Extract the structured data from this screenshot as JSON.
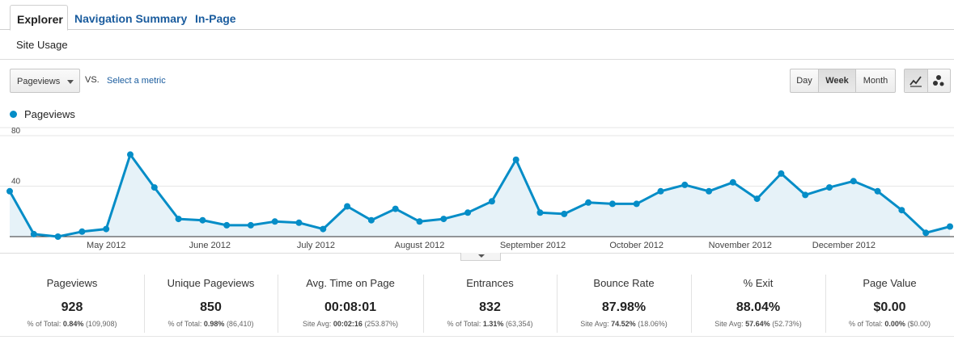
{
  "tabs": [
    {
      "label": "Explorer",
      "active": true
    },
    {
      "label": "Navigation Summary",
      "active": false
    },
    {
      "label": "In-Page",
      "active": false
    }
  ],
  "subheader": "Site Usage",
  "controls": {
    "metric_select": "Pageviews",
    "vs_label": "VS.",
    "select_metric_link": "Select a metric",
    "period_buttons": [
      "Day",
      "Week",
      "Month"
    ],
    "period_selected": "Week",
    "view_buttons": [
      "line-chart-icon",
      "motion-chart-icon"
    ]
  },
  "legend": {
    "label": "Pageviews",
    "color": "#058dc7"
  },
  "chart_data": {
    "type": "area",
    "series": [
      {
        "name": "Pageviews",
        "color": "#058dc7",
        "values": [
          36,
          2,
          0,
          4,
          6,
          65,
          39,
          14,
          13,
          9,
          9,
          12,
          11,
          6,
          24,
          13,
          22,
          12,
          14,
          19,
          28,
          61,
          19,
          18,
          27,
          26,
          26,
          36,
          41,
          36,
          43,
          30,
          50,
          33,
          39,
          44,
          36,
          21,
          3,
          8
        ]
      }
    ],
    "ylim": [
      0,
      80
    ],
    "y_ticks": [
      "80",
      "40"
    ],
    "x_ticks": [
      {
        "label": "May 2012",
        "index": 4
      },
      {
        "label": "June 2012",
        "index": 8.3
      },
      {
        "label": "July 2012",
        "index": 12.7
      },
      {
        "label": "August 2012",
        "index": 17
      },
      {
        "label": "September 2012",
        "index": 21.7
      },
      {
        "label": "October 2012",
        "index": 26
      },
      {
        "label": "November 2012",
        "index": 30.3
      },
      {
        "label": "December 2012",
        "index": 34.6
      }
    ],
    "grid": true
  },
  "metrics": [
    {
      "label": "Pageviews",
      "value": "928",
      "sub_prefix": "% of Total:",
      "sub_bold": "0.84%",
      "sub_suffix": "(109,908)"
    },
    {
      "label": "Unique Pageviews",
      "value": "850",
      "sub_prefix": "% of Total:",
      "sub_bold": "0.98%",
      "sub_suffix": "(86,410)"
    },
    {
      "label": "Avg. Time on Page",
      "value": "00:08:01",
      "sub_prefix": "Site Avg:",
      "sub_bold": "00:02:16",
      "sub_suffix": "(253.87%)"
    },
    {
      "label": "Entrances",
      "value": "832",
      "sub_prefix": "% of Total:",
      "sub_bold": "1.31%",
      "sub_suffix": "(63,354)"
    },
    {
      "label": "Bounce Rate",
      "value": "87.98%",
      "sub_prefix": "Site Avg:",
      "sub_bold": "74.52%",
      "sub_suffix": "(18.06%)"
    },
    {
      "label": "% Exit",
      "value": "88.04%",
      "sub_prefix": "Site Avg:",
      "sub_bold": "57.64%",
      "sub_suffix": "(52.73%)"
    },
    {
      "label": "Page Value",
      "value": "$0.00",
      "sub_prefix": "% of Total:",
      "sub_bold": "0.00%",
      "sub_suffix": "($0.00)"
    }
  ]
}
